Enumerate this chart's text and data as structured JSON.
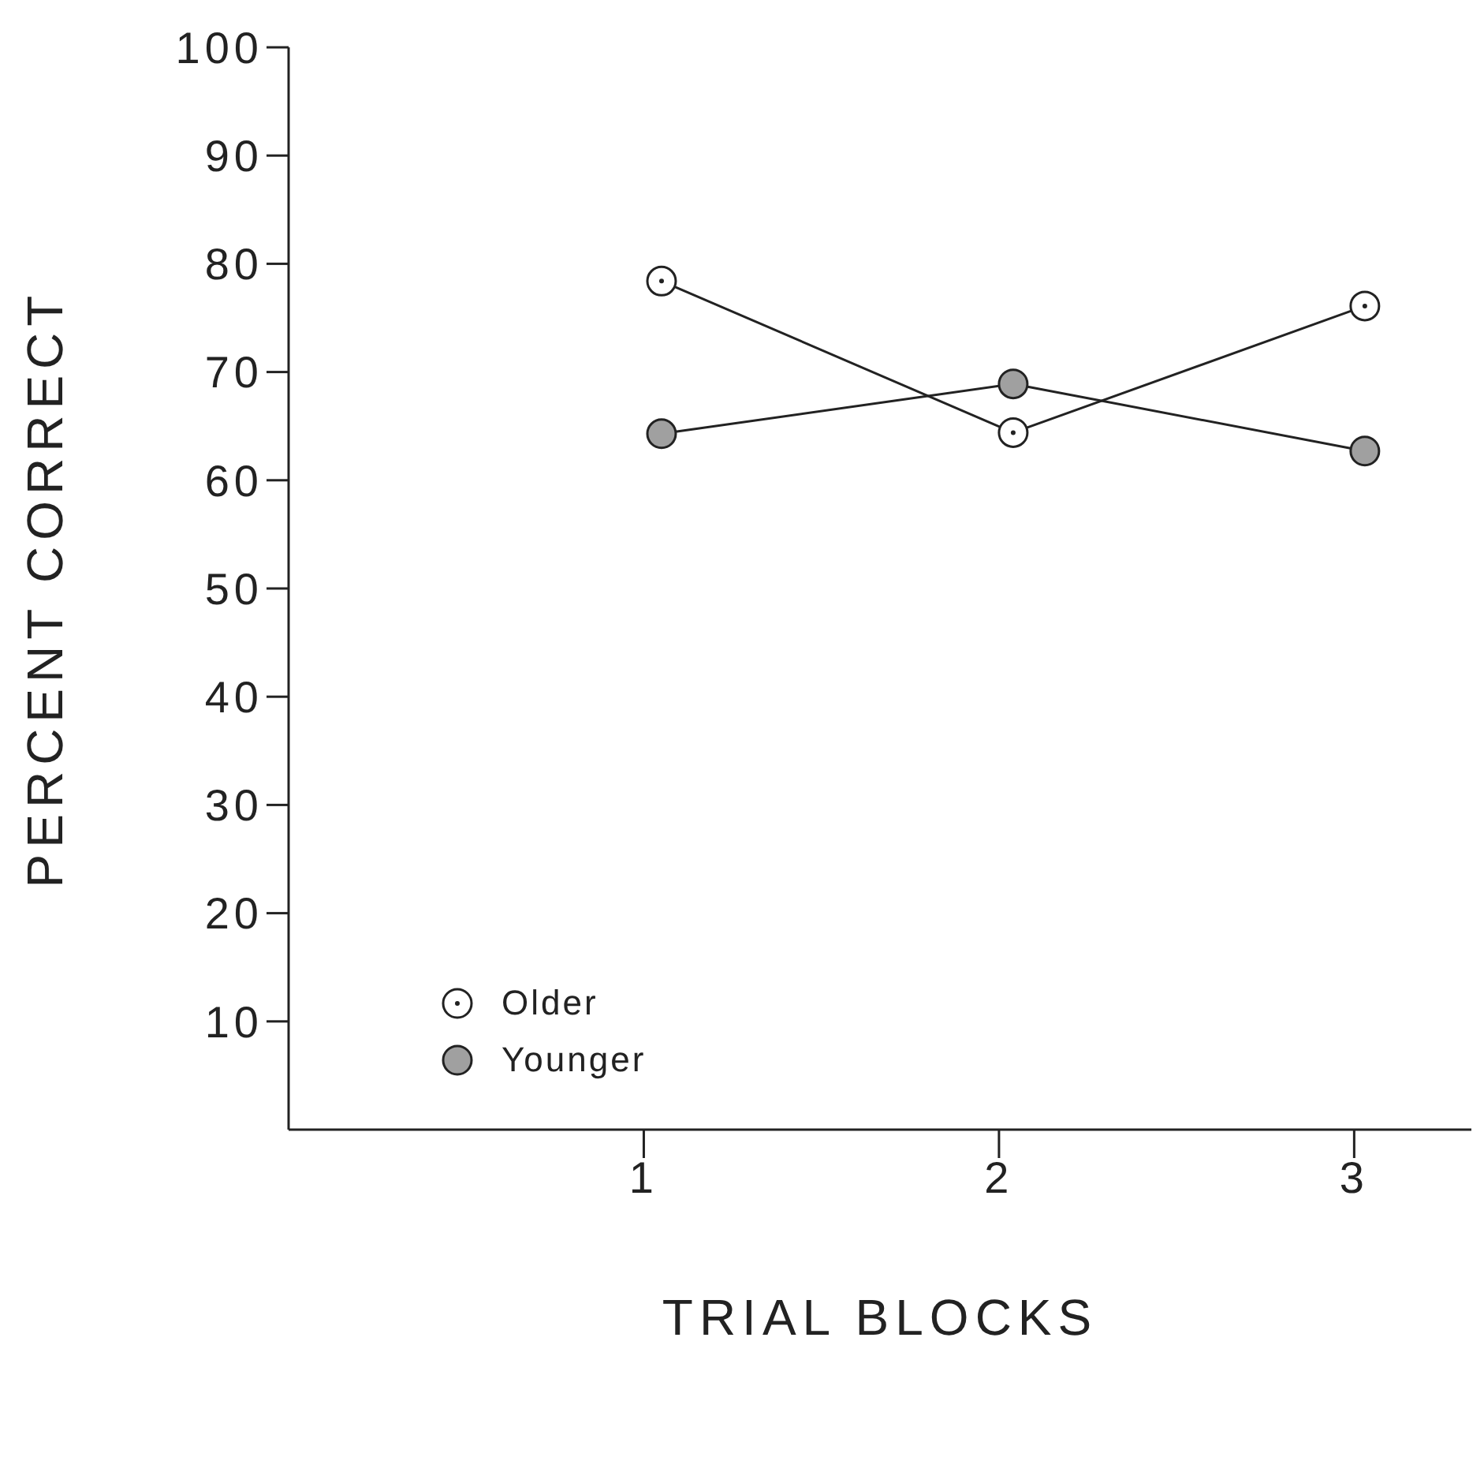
{
  "chart_data": {
    "type": "line",
    "xlabel": "TRIAL BLOCKS",
    "ylabel": "PERCENT CORRECT",
    "x": [
      1.05,
      2.04,
      3.03
    ],
    "series": [
      {
        "name": "Older",
        "color": "#ffffff",
        "values": [
          78.4,
          64.4,
          76.1
        ]
      },
      {
        "name": "Younger",
        "color": "#a0a0a0",
        "values": [
          64.3,
          68.9,
          62.7
        ]
      }
    ],
    "xlim": [
      0,
      3.33
    ],
    "xticks": [
      1,
      2,
      3
    ],
    "ylim": [
      0,
      100
    ],
    "yticks": [
      10,
      20,
      30,
      40,
      50,
      60,
      70,
      80,
      90,
      100
    ],
    "grid": false,
    "legend": "bottom left",
    "marker": "circle",
    "line_style": "solid"
  }
}
